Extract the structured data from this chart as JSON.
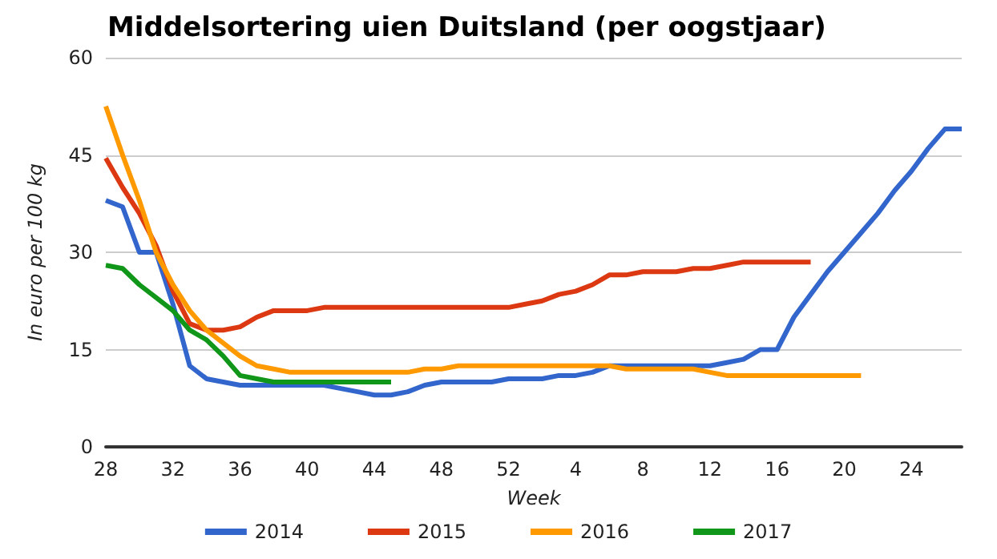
{
  "chart_data": {
    "type": "line",
    "title": "Middelsortering uien Duitsland (per oogstjaar)",
    "xlabel": "Week",
    "ylabel": "In euro per 100 kg",
    "categories": [
      "28",
      null,
      null,
      null,
      "32",
      null,
      null,
      null,
      "36",
      null,
      null,
      null,
      "40",
      null,
      null,
      null,
      "44",
      null,
      null,
      null,
      "48",
      null,
      null,
      null,
      "52",
      null,
      null,
      null,
      "4",
      null,
      null,
      null,
      "8",
      null,
      null,
      null,
      "12",
      null,
      null,
      null,
      "16",
      null,
      null,
      null,
      "20",
      null,
      null,
      null,
      "24",
      null,
      null,
      null
    ],
    "series": [
      {
        "name": "2014",
        "color": "#3366cc",
        "values": [
          38,
          37,
          30,
          30,
          22,
          12.5,
          10.5,
          10,
          9.5,
          9.5,
          9.5,
          9.5,
          9.5,
          9.5,
          9,
          8.5,
          8,
          8,
          8.5,
          9.5,
          10,
          10,
          10,
          10,
          10.5,
          10.5,
          10.5,
          11,
          11,
          11.5,
          12.5,
          12.5,
          12.5,
          12.5,
          12.5,
          12.5,
          12.5,
          13,
          13.5,
          15,
          15,
          20,
          23.5,
          27,
          30,
          33,
          36,
          39.5,
          42.5,
          46,
          49,
          49
        ]
      },
      {
        "name": "2015",
        "color": "#dc3912",
        "values": [
          44.5,
          40,
          36,
          31,
          24,
          19,
          18,
          18,
          18.5,
          20,
          21,
          21,
          21,
          21.5,
          21.5,
          21.5,
          21.5,
          21.5,
          21.5,
          21.5,
          21.5,
          21.5,
          21.5,
          21.5,
          21.5,
          22,
          22.5,
          23.5,
          24,
          25,
          26.5,
          26.5,
          27,
          27,
          27,
          27.5,
          27.5,
          28,
          28.5,
          28.5,
          28.5,
          28.5,
          28.5,
          null,
          null,
          null,
          null,
          null,
          null,
          null,
          null,
          null
        ]
      },
      {
        "name": "2016",
        "color": "#ff9900",
        "values": [
          52.5,
          45,
          38,
          30,
          25,
          21,
          18,
          16,
          14,
          12.5,
          12,
          11.5,
          11.5,
          11.5,
          11.5,
          11.5,
          11.5,
          11.5,
          11.5,
          12,
          12,
          12.5,
          12.5,
          12.5,
          12.5,
          12.5,
          12.5,
          12.5,
          12.5,
          12.5,
          12.5,
          12,
          12,
          12,
          12,
          12,
          11.5,
          11,
          11,
          11,
          11,
          11,
          11,
          11,
          11,
          11,
          null,
          null,
          null,
          null,
          null,
          null
        ]
      },
      {
        "name": "2017",
        "color": "#109618",
        "values": [
          28,
          27.5,
          25,
          23,
          21,
          18,
          16.5,
          14,
          11,
          10.5,
          10,
          10,
          10,
          10,
          10,
          10,
          10,
          10,
          null,
          null,
          null,
          null,
          null,
          null,
          null,
          null,
          null,
          null,
          null,
          null,
          null,
          null,
          null,
          null,
          null,
          null,
          null,
          null,
          null,
          null,
          null,
          null,
          null,
          null,
          null,
          null,
          null,
          null,
          null,
          null,
          null,
          null
        ]
      }
    ],
    "ylim": [
      0,
      60
    ],
    "yticks": [
      0,
      15,
      30,
      45,
      60
    ],
    "grid": "y",
    "legend": "bottom",
    "marker": "none",
    "line_style": "solid"
  }
}
